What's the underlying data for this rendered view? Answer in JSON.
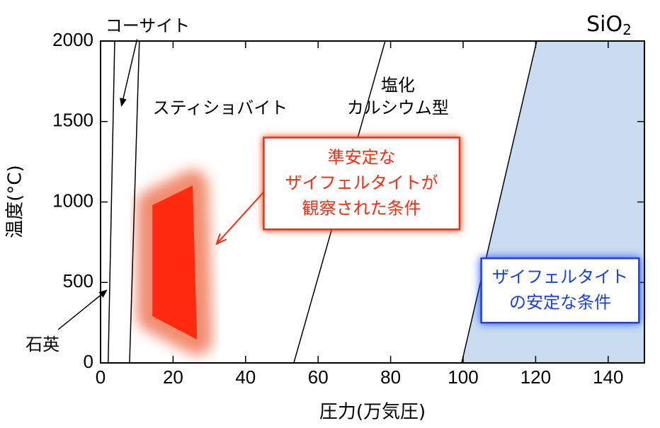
{
  "chart_data": {
    "type": "phase",
    "title": "SiO",
    "title_subscript": "2",
    "x_label": "圧力(万気圧)",
    "y_label": "温度(°C)",
    "xlim": [
      0,
      150
    ],
    "ylim": [
      0,
      2000
    ],
    "xticks": [
      0,
      20,
      40,
      60,
      80,
      100,
      120,
      140
    ],
    "yticks": [
      0,
      500,
      1000,
      1500,
      2000
    ],
    "series": [
      {
        "color": "#000000",
        "x": [
          2.1,
          3.9
        ],
        "values": [
          0,
          2000
        ]
      },
      {
        "color": "#000000",
        "x": [
          8,
          10.7
        ],
        "values": [
          0,
          2000
        ]
      },
      {
        "color": "#000000",
        "x": [
          53.3,
          78.5
        ],
        "values": [
          0,
          2000
        ]
      },
      {
        "color": "#000000",
        "x": [
          99.6,
          120.3
        ],
        "values": [
          0,
          2000
        ]
      }
    ],
    "regions": [
      {
        "color": "#c9dcf0",
        "x": [
          99.6,
          120.3,
          150,
          150
        ],
        "values": [
          0,
          2000,
          2000,
          0
        ]
      },
      {
        "color": "#ff2a10",
        "glow": "#f08060",
        "x": [
          14.3,
          25.4,
          26.6,
          14.3
        ],
        "values": [
          980,
          1103,
          145,
          290
        ]
      }
    ],
    "phase_labels": [
      {
        "lines": [
          "コーサイト"
        ],
        "x": 13,
        "y": 2090,
        "arrow_to": [
          5.8,
          1600
        ]
      },
      {
        "lines": [
          "スティショバイト"
        ],
        "x": 33,
        "y": 1580
      },
      {
        "lines": [
          "塩化",
          "カルシウム型"
        ],
        "x": 82,
        "y": 1720
      },
      {
        "lines": [
          "石英"
        ],
        "x": -16,
        "y": 110,
        "arrow_to": [
          1.6,
          450
        ]
      }
    ],
    "boxes": [
      {
        "lines": [
          "準安定な",
          "ザイフェルタイトが",
          "観察された条件"
        ],
        "color": "#ff2a10",
        "x": [
          45,
          99
        ],
        "y": [
          1400,
          830
        ],
        "arrow_to": [
          32,
          740
        ]
      },
      {
        "lines": [
          "ザイフェルタイト",
          "の安定な条件"
        ],
        "color": "#1a3ff0",
        "x": [
          105,
          148.5
        ],
        "y": [
          650,
          250
        ]
      }
    ]
  }
}
